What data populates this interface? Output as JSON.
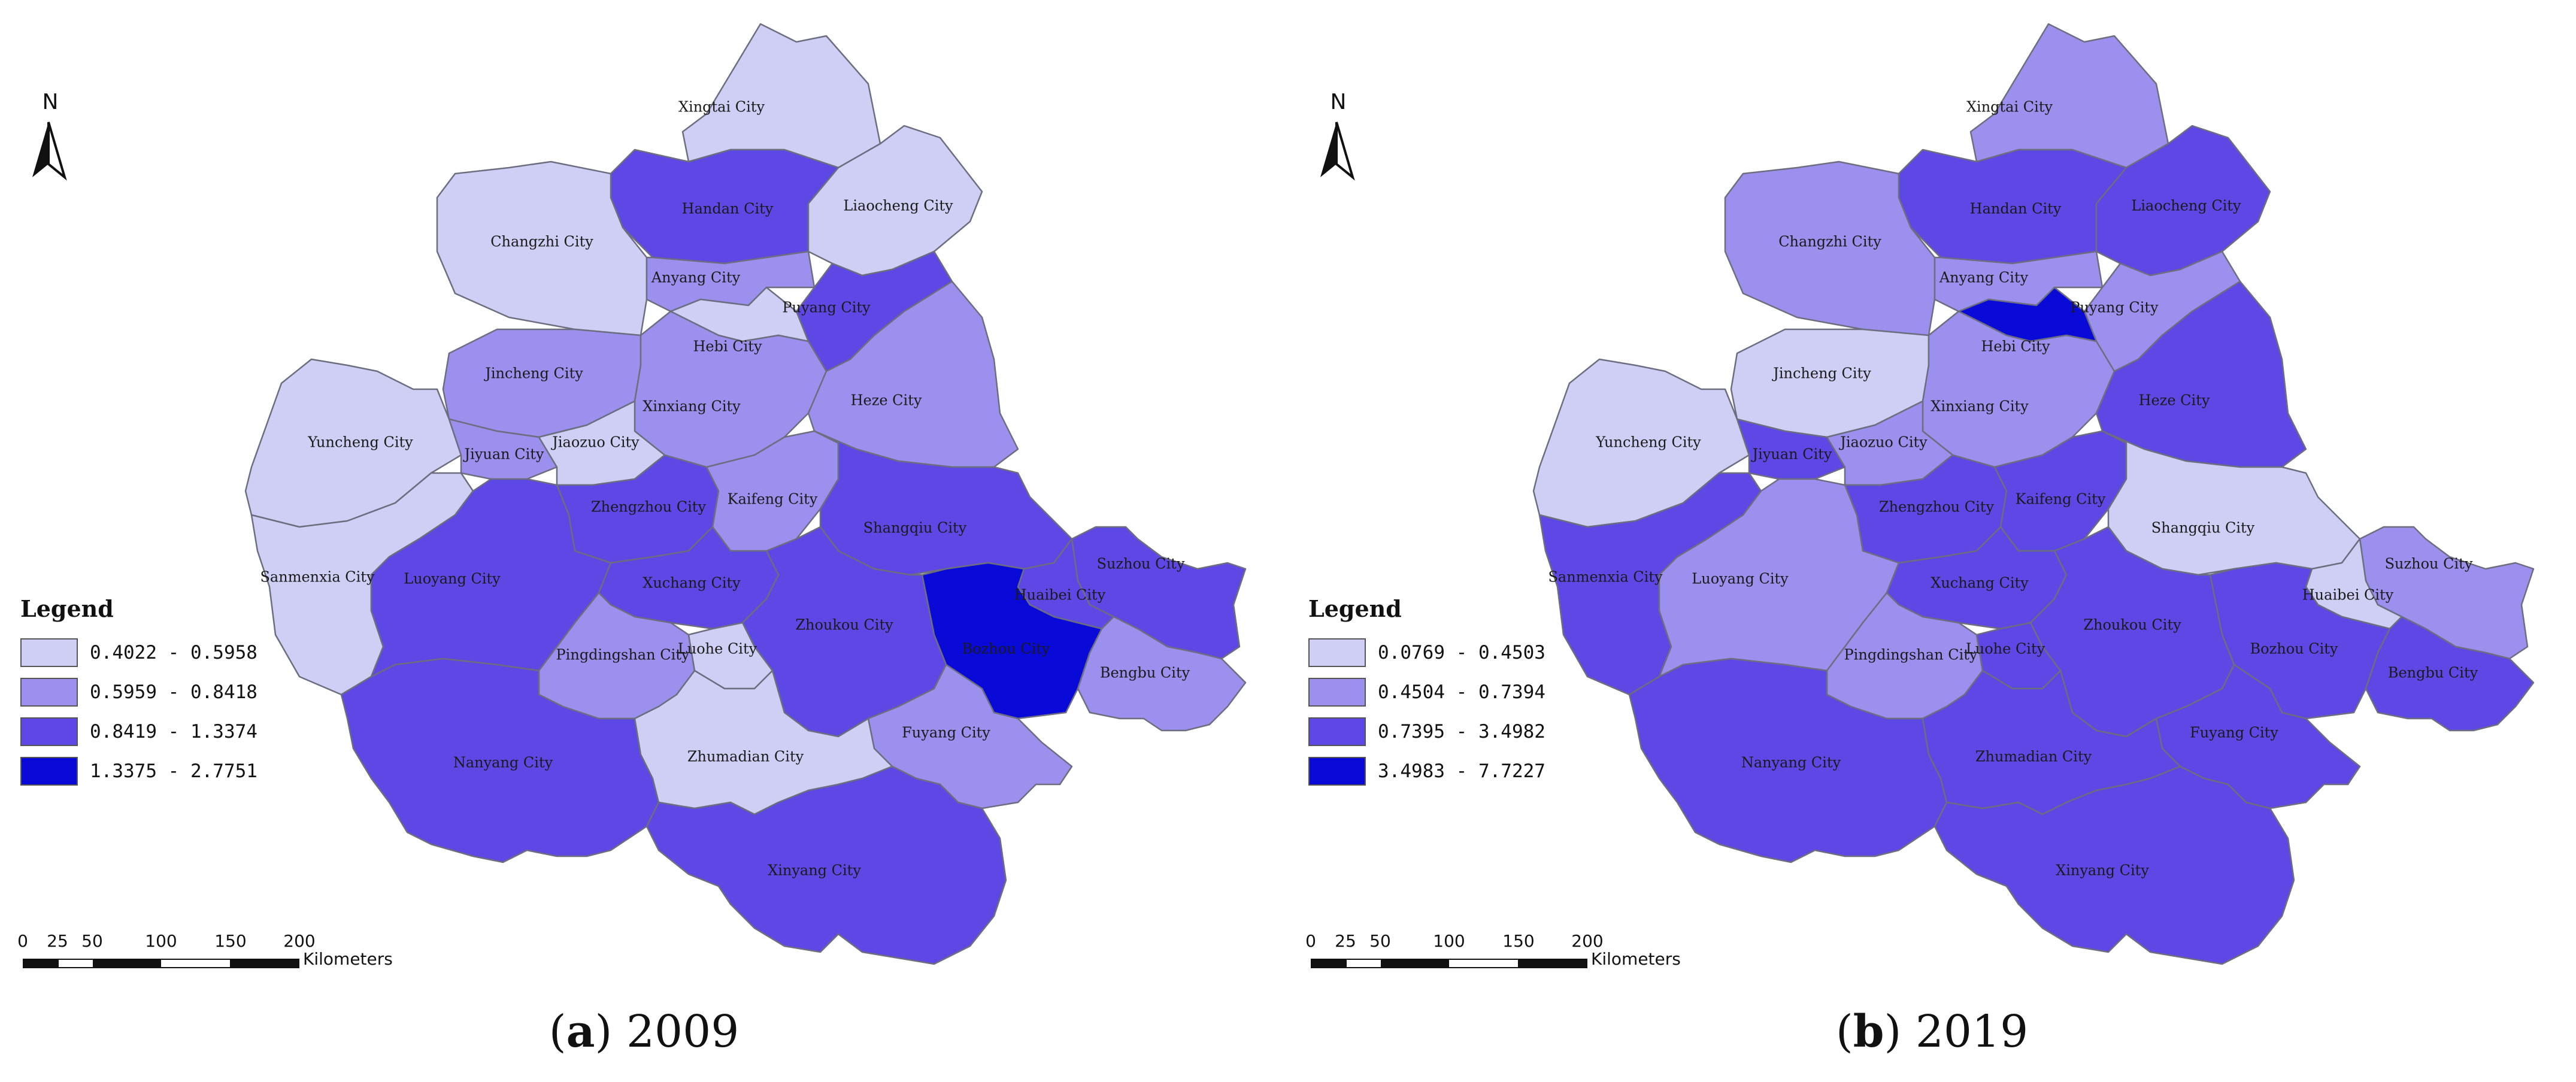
{
  "panels": [
    {
      "id": "a",
      "caption_letter": "a",
      "caption_text": "2009",
      "north_label": "N",
      "legend": {
        "title": "Legend",
        "classes": [
          {
            "label": "0.4022 - 0.5958",
            "color": "#cfcff5"
          },
          {
            "label": "0.5959 - 0.8418",
            "color": "#9b90ee"
          },
          {
            "label": "0.8419 - 1.3374",
            "color": "#5d48e6"
          },
          {
            "label": "1.3375 - 2.7751",
            "color": "#0a0ad8"
          }
        ]
      },
      "scale": {
        "ticks": [
          "0",
          "25",
          "50",
          "100",
          "150",
          "200"
        ],
        "unit": "Kilometers"
      },
      "cities": {
        "Xingtai City": 0,
        "Handan City": 2,
        "Liaocheng City": 0,
        "Changzhi City": 0,
        "Anyang City": 1,
        "Puyang City": 2,
        "Hebi City": 0,
        "Jincheng City": 1,
        "Xinxiang City": 1,
        "Heze City": 1,
        "Yuncheng City": 0,
        "Jiyuan City": 1,
        "Jiaozuo City": 0,
        "Zhengzhou City": 2,
        "Kaifeng City": 1,
        "Shangqiu City": 2,
        "Sanmenxia City": 0,
        "Luoyang City": 2,
        "Xuchang City": 2,
        "Suzhou City": 2,
        "Huaibei City": 2,
        "Bozhou City": 3,
        "Zhoukou City": 2,
        "Pingdingshan City": 1,
        "Luohe City": 0,
        "Bengbu City": 1,
        "Fuyang City": 1,
        "Nanyang City": 2,
        "Zhumadian City": 0,
        "Xinyang City": 2
      }
    },
    {
      "id": "b",
      "caption_letter": "b",
      "caption_text": "2019",
      "north_label": "N",
      "legend": {
        "title": "Legend",
        "classes": [
          {
            "label": "0.0769 - 0.4503",
            "color": "#cfcff5"
          },
          {
            "label": "0.4504 - 0.7394",
            "color": "#9b90ee"
          },
          {
            "label": "0.7395 - 3.4982",
            "color": "#5d48e6"
          },
          {
            "label": "3.4983 - 7.7227",
            "color": "#0a0ad8"
          }
        ]
      },
      "scale": {
        "ticks": [
          "0",
          "25",
          "50",
          "100",
          "150",
          "200"
        ],
        "unit": "Kilometers"
      },
      "cities": {
        "Xingtai City": 1,
        "Handan City": 2,
        "Liaocheng City": 2,
        "Changzhi City": 1,
        "Anyang City": 1,
        "Puyang City": 1,
        "Hebi City": 3,
        "Jincheng City": 0,
        "Xinxiang City": 1,
        "Heze City": 2,
        "Yuncheng City": 0,
        "Jiyuan City": 2,
        "Jiaozuo City": 1,
        "Zhengzhou City": 2,
        "Kaifeng City": 2,
        "Shangqiu City": 0,
        "Sanmenxia City": 2,
        "Luoyang City": 1,
        "Xuchang City": 2,
        "Suzhou City": 1,
        "Huaibei City": 0,
        "Bozhou City": 2,
        "Zhoukou City": 2,
        "Pingdingshan City": 1,
        "Luohe City": 2,
        "Bengbu City": 2,
        "Fuyang City": 2,
        "Nanyang City": 2,
        "Zhumadian City": 2,
        "Xinyang City": 2
      }
    }
  ]
}
